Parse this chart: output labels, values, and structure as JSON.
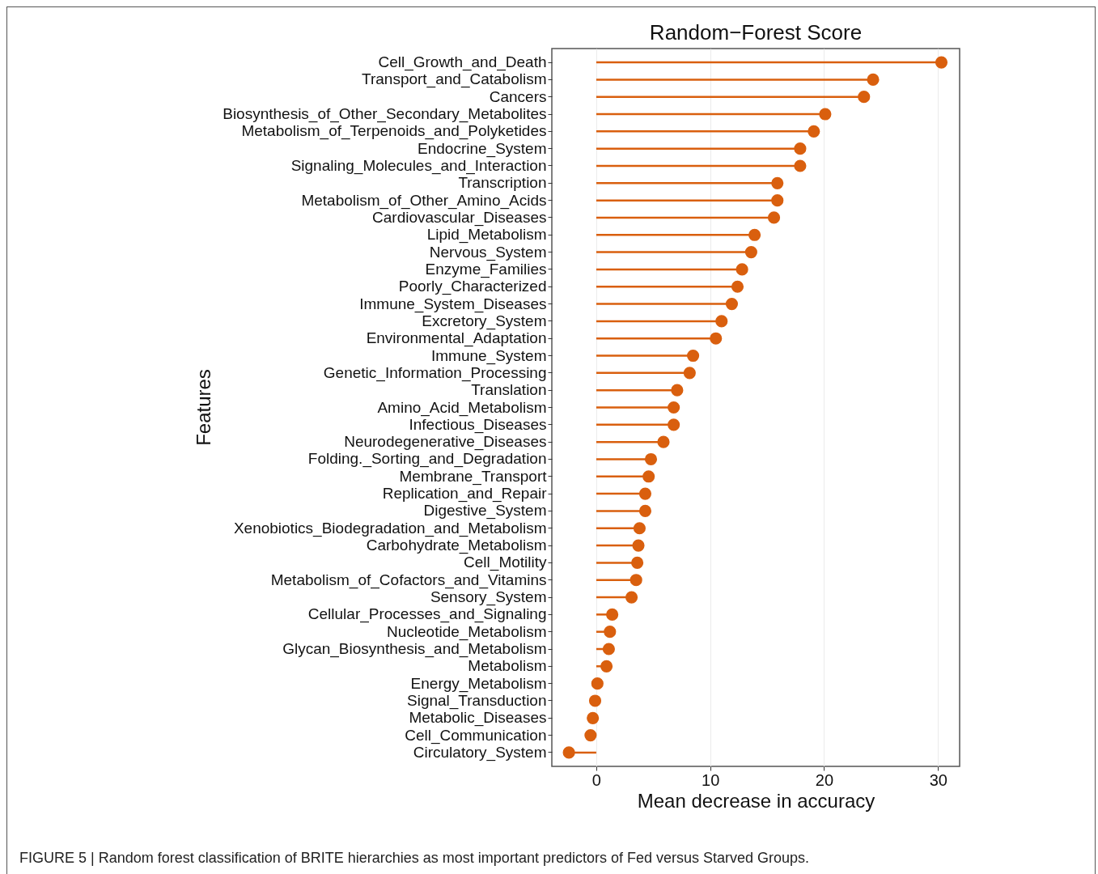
{
  "chart_data": {
    "type": "lollipop",
    "title": "Random−Forest Score",
    "xlabel": "Mean decrease in accuracy",
    "ylabel": "Features",
    "orientation": "horizontal",
    "categories": [
      "Cell_Growth_and_Death",
      "Transport_and_Catabolism",
      "Cancers",
      "Biosynthesis_of_Other_Secondary_Metabolites",
      "Metabolism_of_Terpenoids_and_Polyketides",
      "Endocrine_System",
      "Signaling_Molecules_and_Interaction",
      "Transcription",
      "Metabolism_of_Other_Amino_Acids",
      "Cardiovascular_Diseases",
      "Lipid_Metabolism",
      "Nervous_System",
      "Enzyme_Families",
      "Poorly_Characterized",
      "Immune_System_Diseases",
      "Excretory_System",
      "Environmental_Adaptation",
      "Immune_System",
      "Genetic_Information_Processing",
      "Translation",
      "Amino_Acid_Metabolism",
      "Infectious_Diseases",
      "Neurodegenerative_Diseases",
      "Folding._Sorting_and_Degradation",
      "Membrane_Transport",
      "Replication_and_Repair",
      "Digestive_System",
      "Xenobiotics_Biodegradation_and_Metabolism",
      "Carbohydrate_Metabolism",
      "Cell_Motility",
      "Metabolism_of_Cofactors_and_Vitamins",
      "Sensory_System",
      "Cellular_Processes_and_Signaling",
      "Nucleotide_Metabolism",
      "Glycan_Biosynthesis_and_Metabolism",
      "Metabolism",
      "Energy_Metabolism",
      "Signal_Transduction",
      "Metabolic_Diseases",
      "Cell_Communication",
      "Circulatory_System"
    ],
    "values": [
      30.3,
      24.3,
      23.5,
      20.1,
      19.1,
      17.9,
      17.9,
      15.9,
      15.9,
      15.6,
      13.9,
      13.6,
      12.8,
      12.4,
      11.9,
      11.0,
      10.5,
      8.5,
      8.2,
      7.1,
      6.8,
      6.8,
      5.9,
      4.8,
      4.6,
      4.3,
      4.3,
      3.8,
      3.7,
      3.6,
      3.5,
      3.1,
      1.4,
      1.2,
      1.1,
      0.9,
      0.1,
      -0.1,
      -0.3,
      -0.5,
      -2.4
    ],
    "color": "#d95f0e",
    "xlim": [
      -3.9,
      31.9
    ],
    "xticks": [
      0,
      10,
      20,
      30
    ],
    "grid": "x",
    "marker": "circle",
    "annotations": [
      "FIGURE 5 | Random forest classification of BRITE hierarchies as most important predictors of Fed versus Starved Groups."
    ]
  }
}
